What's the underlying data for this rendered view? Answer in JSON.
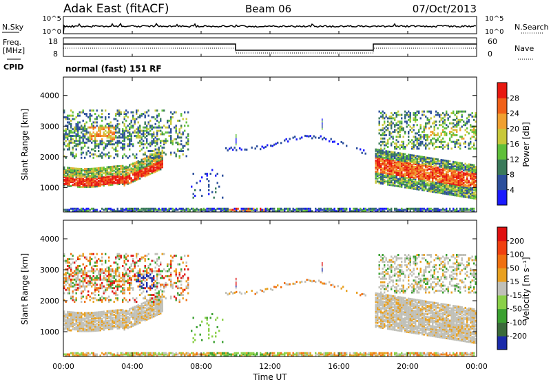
{
  "header": {
    "station": "Adak East (fitACF)",
    "beam": "Beam 06",
    "date": "07/Oct/2013"
  },
  "noise_panel": {
    "left_label": "N.Sky",
    "right_label": "N.Search",
    "ticks_top": "10^5",
    "ticks_bottom": "10^0"
  },
  "freq_panel": {
    "left_label": "Freq.",
    "left_unit": "[MHz]",
    "left_ticks": [
      "18",
      "8"
    ],
    "right_label": "Nave",
    "right_ticks": [
      "60",
      "0"
    ],
    "cpid_label": "CPID",
    "cpid_value": "normal (fast) 151 RF"
  },
  "chart_data": [
    {
      "type": "heatmap",
      "title": "",
      "xlabel": "Time UT",
      "ylabel": "Slant Range [km]",
      "x_ticks": [
        "00:00",
        "04:00",
        "08:00",
        "12:00",
        "16:00",
        "20:00",
        "00:00"
      ],
      "y_ticks": [
        1000,
        2000,
        3000,
        4000
      ],
      "ylim": [
        200,
        4600
      ],
      "colorbar": {
        "label": "Power [dB]",
        "ticks": [
          "4",
          "8",
          "12",
          "16",
          "20",
          "24",
          "28"
        ],
        "colors": [
          "#1a1aff",
          "#2c4f9c",
          "#3a7a5a",
          "#5fbf3a",
          "#c8c83a",
          "#f0a030",
          "#f06018",
          "#e81810"
        ]
      },
      "regions": [
        {
          "name": "low-band-morning",
          "t_start": 0,
          "t_end": 5.5,
          "range_start": 1000,
          "range_end": 1700,
          "level": "high"
        },
        {
          "name": "upper-band-morning",
          "t_start": 0,
          "t_end": 7,
          "range_start": 2000,
          "range_end": 3500,
          "level": "mid"
        },
        {
          "name": "arc-daytime",
          "t_start": 9.5,
          "t_end": 17.5,
          "range_start": 2000,
          "range_end": 2700,
          "level": "low"
        },
        {
          "name": "low-band-evening",
          "t_start": 18,
          "t_end": 24,
          "range_start": 1000,
          "range_end": 2300,
          "level": "high"
        },
        {
          "name": "upper-band-evening",
          "t_start": 18,
          "t_end": 24,
          "range_start": 2400,
          "range_end": 3500,
          "level": "mid"
        },
        {
          "name": "ground-scatter-floor",
          "t_start": 0,
          "t_end": 24,
          "range_start": 200,
          "range_end": 350,
          "level": "mixed"
        }
      ]
    },
    {
      "type": "heatmap",
      "title": "",
      "xlabel": "Time UT",
      "ylabel": "Slant Range [km]",
      "x_ticks": [
        "00:00",
        "04:00",
        "08:00",
        "12:00",
        "16:00",
        "20:00",
        "00:00"
      ],
      "y_ticks": [
        1000,
        2000,
        3000,
        4000
      ],
      "ylim": [
        200,
        4600
      ],
      "colorbar": {
        "label": "Velocity [m s⁻¹]",
        "ticks": [
          "200",
          "100",
          "50",
          "15",
          "-15",
          "-50",
          "-100",
          "-200"
        ],
        "colors": [
          "#1a2aaa",
          "#3a6a3a",
          "#3aa030",
          "#8ad048",
          "#c0c0b8",
          "#e8a020",
          "#f07010",
          "#f04010",
          "#e01010"
        ]
      }
    }
  ],
  "colors": {
    "background": "#ffffff",
    "frame": "#000000",
    "ground_scatter": "#c0c0b8"
  }
}
